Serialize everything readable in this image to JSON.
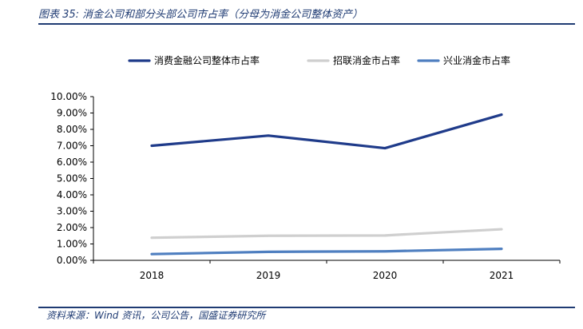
{
  "header": {
    "title": "图表 35:  消金公司和部分头部公司市占率（分母为消金公司整体资产）"
  },
  "footer": {
    "source": "资料来源：Wind 资讯，公司公告，国盛证券研究所"
  },
  "chart_data": {
    "type": "line",
    "x": [
      "2018",
      "2019",
      "2020",
      "2021"
    ],
    "series": [
      {
        "name": "消费金融公司整体市占率",
        "values": [
          0.07,
          0.0762,
          0.0685,
          0.089
        ],
        "color": "#1f3b8a"
      },
      {
        "name": "招联消金市占率",
        "values": [
          0.0138,
          0.015,
          0.0152,
          0.019
        ],
        "color": "#cfcfcf"
      },
      {
        "name": "兴业消金市占率",
        "values": [
          0.0038,
          0.0052,
          0.0055,
          0.007
        ],
        "color": "#4f7fc0"
      }
    ],
    "y_ticks": [
      "0.00%",
      "1.00%",
      "2.00%",
      "3.00%",
      "4.00%",
      "5.00%",
      "6.00%",
      "7.00%",
      "8.00%",
      "9.00%",
      "10.00%"
    ],
    "ylim": [
      0,
      0.1
    ],
    "grid": false,
    "legend_position": "top"
  }
}
